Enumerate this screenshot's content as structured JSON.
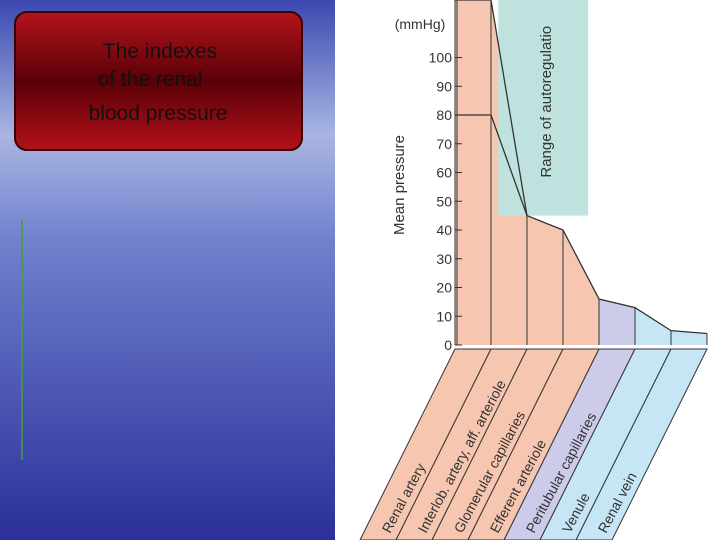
{
  "slide_title": [
    "The indexes",
    "of the renal",
    "blood pressure"
  ],
  "chart_data": {
    "type": "area",
    "unit_label": "(mmHg)",
    "y_label": "Mean pressure",
    "categories": [
      "Renal artery",
      "Interlob. artery, aff. arteriole",
      "Glomerular capillaries",
      "Efferent arteriole",
      "Peritubular capillaries",
      "Venule",
      "Renal vein"
    ],
    "segment_colors": [
      "#f7c6b0",
      "#f7c6b0",
      "#f7c6b0",
      "#f7c6b0",
      "#cccbea",
      "#c6e6f6",
      "#c6e6f6"
    ],
    "x": [
      0,
      1,
      2,
      3,
      4,
      5,
      6,
      7
    ],
    "xlim": [
      0,
      7
    ],
    "series": [
      {
        "color": "#333333",
        "values": [
          80,
          80,
          45,
          40,
          16,
          13,
          5,
          4
        ]
      },
      {
        "color": "#333333",
        "values": [
          120,
          120,
          45,
          null,
          null,
          null,
          null,
          null
        ]
      }
    ],
    "band": {
      "label": "Range of autoregulatio",
      "color": "#bfe2df",
      "x_range": [
        1.2,
        3.7
      ],
      "y_from": 45
    },
    "ylim": [
      0,
      120
    ],
    "yticks": [
      0,
      10,
      20,
      30,
      40,
      50,
      60,
      70,
      80,
      90,
      100
    ]
  }
}
